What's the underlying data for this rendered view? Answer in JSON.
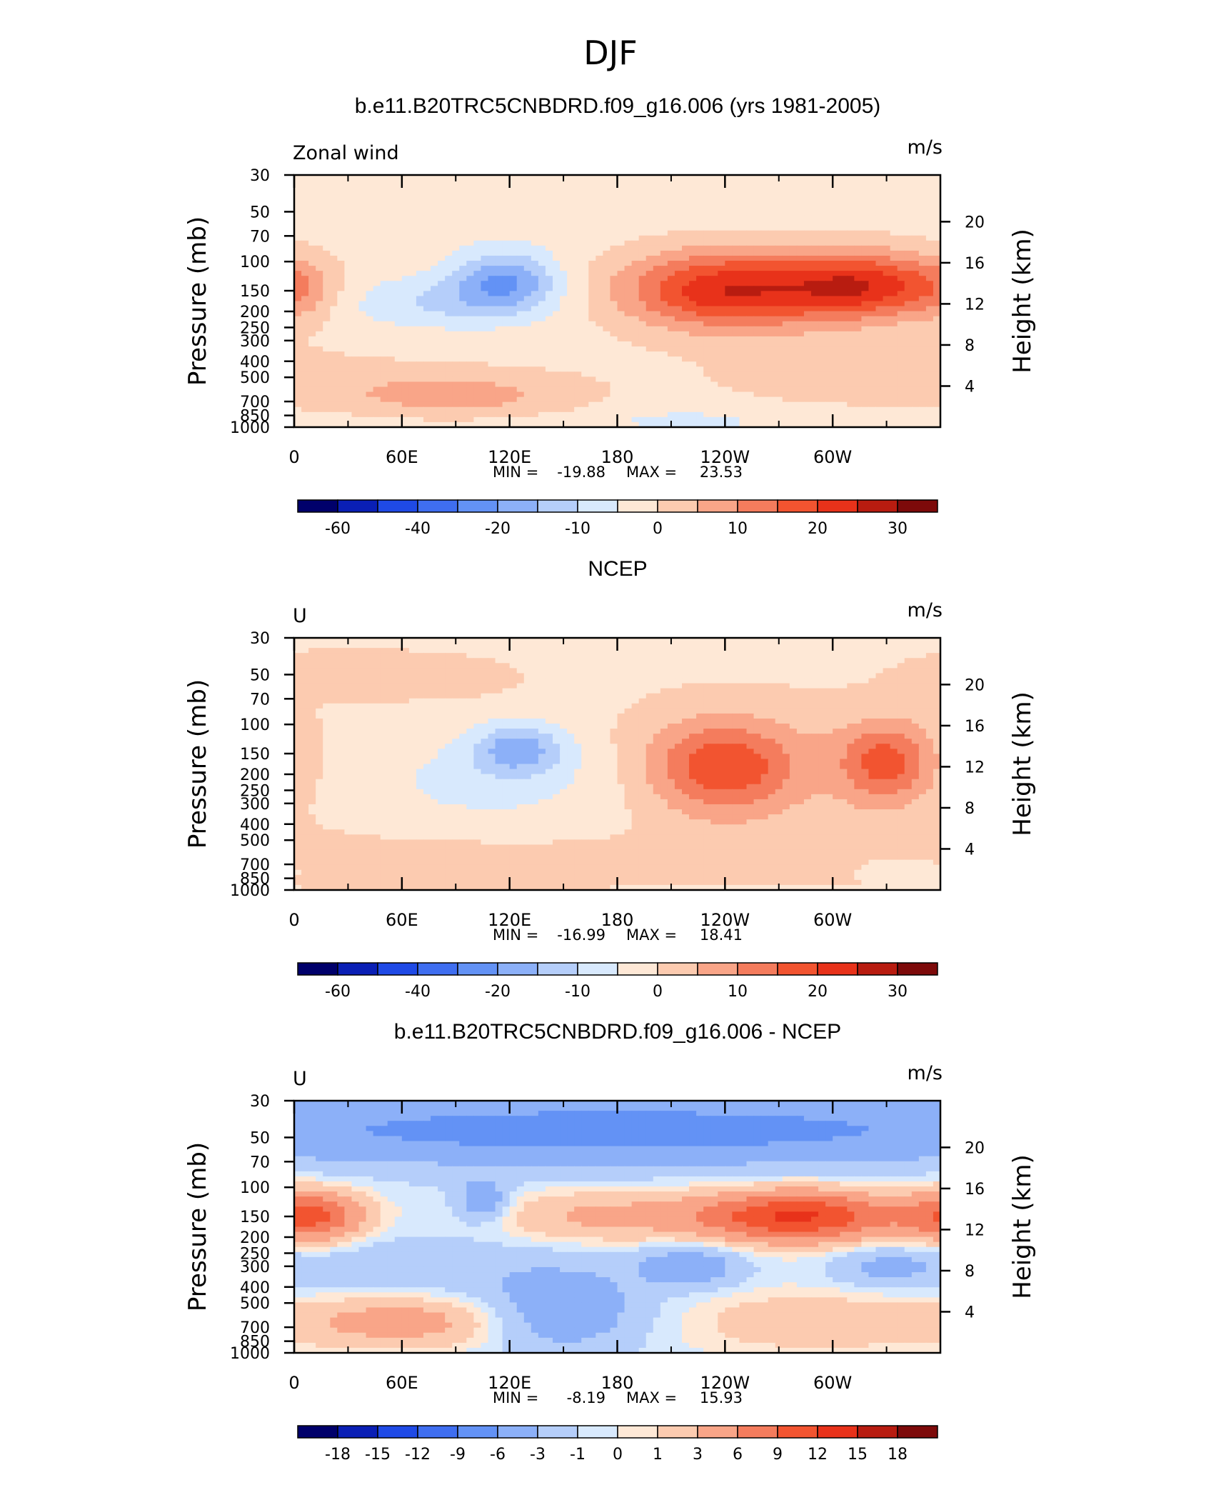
{
  "figure": {
    "title": "DJF"
  },
  "chart_data": [
    {
      "type": "heatmap",
      "title": "b.e11.B20TRC5CNBDRD.f09_g16.006 (yrs 1981-2005)",
      "left_string": "Zonal wind",
      "units": "m/s",
      "ylabel": "Pressure (mb)",
      "ylabel_right": "Height (km)",
      "x_ticks": [
        "0",
        "60E",
        "120E",
        "180",
        "120W",
        "60W"
      ],
      "y_ticks": [
        "30",
        "50",
        "70",
        "100",
        "150",
        "200",
        "250",
        "300",
        "400",
        "500",
        "700",
        "850",
        "1000"
      ],
      "y_right_ticks": [
        "20",
        "16",
        "12",
        "8",
        "4"
      ],
      "stats": {
        "min_label": "MIN =",
        "min": "-19.88",
        "max_label": "MAX =",
        "max": "23.53"
      },
      "colorbar_labels": [
        "-60",
        "-40",
        "-20",
        "-10",
        "0",
        "10",
        "20",
        "30"
      ],
      "levels": [
        -60,
        -50,
        -40,
        -30,
        -20,
        -15,
        -10,
        -5,
        0,
        5,
        10,
        15,
        20,
        25,
        30
      ],
      "features": [
        {
          "x": 118,
          "p": 130,
          "sx": 20,
          "sy": 0.28,
          "amp": -17
        },
        {
          "x": 80,
          "p": 175,
          "sx": 40,
          "sy": 0.25,
          "amp": -8
        },
        {
          "x": 240,
          "p": 150,
          "sx": 40,
          "sy": 0.38,
          "amp": 23
        },
        {
          "x": 318,
          "p": 140,
          "sx": 30,
          "sy": 0.32,
          "amp": 21
        },
        {
          "x": 280,
          "p": 140,
          "sx": 80,
          "sy": 0.5,
          "amp": 5
        },
        {
          "x": 3,
          "p": 150,
          "sx": 15,
          "sy": 0.3,
          "amp": 7
        },
        {
          "x": 90,
          "p": 650,
          "sx": 45,
          "sy": 0.2,
          "amp": 9
        },
        {
          "x": 220,
          "p": 920,
          "sx": 25,
          "sy": 0.08,
          "amp": -6
        },
        {
          "x": 40,
          "p": 500,
          "sx": 120,
          "sy": 0.35,
          "amp": 3
        },
        {
          "x": 300,
          "p": 500,
          "sx": 60,
          "sy": 0.35,
          "amp": 3
        }
      ],
      "base": -3
    },
    {
      "type": "heatmap",
      "title": "NCEP",
      "left_string": "U",
      "units": "m/s",
      "ylabel": "Pressure (mb)",
      "ylabel_right": "Height (km)",
      "x_ticks": [
        "0",
        "60E",
        "120E",
        "180",
        "120W",
        "60W"
      ],
      "y_ticks": [
        "30",
        "50",
        "70",
        "100",
        "150",
        "200",
        "250",
        "300",
        "400",
        "500",
        "700",
        "850",
        "1000"
      ],
      "y_right_ticks": [
        "20",
        "16",
        "12",
        "8",
        "4"
      ],
      "stats": {
        "min_label": "MIN =",
        "min": "-16.99",
        "max_label": "MAX =",
        "max": "18.41"
      },
      "colorbar_labels": [
        "-60",
        "-40",
        "-20",
        "-10",
        "0",
        "10",
        "20",
        "30"
      ],
      "levels": [
        -60,
        -50,
        -40,
        -30,
        -20,
        -15,
        -10,
        -5,
        0,
        5,
        10,
        15,
        20,
        25,
        30
      ],
      "features": [
        {
          "x": 125,
          "p": 140,
          "sx": 18,
          "sy": 0.25,
          "amp": -15
        },
        {
          "x": 110,
          "p": 220,
          "sx": 55,
          "sy": 0.45,
          "amp": -6
        },
        {
          "x": 238,
          "p": 180,
          "sx": 28,
          "sy": 0.45,
          "amp": 18
        },
        {
          "x": 330,
          "p": 170,
          "sx": 18,
          "sy": 0.4,
          "amp": 16
        },
        {
          "x": 280,
          "p": 180,
          "sx": 70,
          "sy": 0.6,
          "amp": 4
        },
        {
          "x": 30,
          "p": 50,
          "sx": 30,
          "sy": 0.2,
          "amp": 5
        },
        {
          "x": 85,
          "p": 52,
          "sx": 25,
          "sy": 0.18,
          "amp": 4
        },
        {
          "x": 100,
          "p": 700,
          "sx": 60,
          "sy": 0.2,
          "amp": 5
        },
        {
          "x": 340,
          "p": 750,
          "sx": 15,
          "sy": 0.1,
          "amp": -5
        },
        {
          "x": 300,
          "p": 600,
          "sx": 100,
          "sy": 0.35,
          "amp": 2
        }
      ],
      "base": -1
    },
    {
      "type": "heatmap",
      "title": "b.e11.B20TRC5CNBDRD.f09_g16.006 - NCEP",
      "left_string": "U",
      "units": "m/s",
      "ylabel": "Pressure (mb)",
      "ylabel_right": "Height (km)",
      "x_ticks": [
        "0",
        "60E",
        "120E",
        "180",
        "120W",
        "60W"
      ],
      "y_ticks": [
        "30",
        "50",
        "70",
        "100",
        "150",
        "200",
        "250",
        "300",
        "400",
        "500",
        "700",
        "850",
        "1000"
      ],
      "y_right_ticks": [
        "20",
        "16",
        "12",
        "8",
        "4"
      ],
      "stats": {
        "min_label": "MIN =",
        "min": "-8.19",
        "max_label": "MAX =",
        "max": "15.93"
      },
      "colorbar_labels": [
        "-18",
        "-15",
        "-12",
        "-9",
        "-6",
        "-3",
        "-1",
        "0",
        "1",
        "3",
        "6",
        "9",
        "12",
        "15",
        "18"
      ],
      "levels": [
        -18,
        -15,
        -12,
        -9,
        -6,
        -3,
        -1,
        0,
        1,
        3,
        6,
        9,
        12,
        15,
        18
      ],
      "features": [
        {
          "x": 180,
          "p": 45,
          "sx": 200,
          "sy": 0.35,
          "amp": -7
        },
        {
          "x": 280,
          "p": 150,
          "sx": 40,
          "sy": 0.25,
          "amp": 13
        },
        {
          "x": 10,
          "p": 150,
          "sx": 20,
          "sy": 0.25,
          "amp": 10
        },
        {
          "x": 170,
          "p": 150,
          "sx": 40,
          "sy": 0.25,
          "amp": 4
        },
        {
          "x": 105,
          "p": 120,
          "sx": 10,
          "sy": 0.2,
          "amp": -5
        },
        {
          "x": 220,
          "p": 300,
          "sx": 20,
          "sy": 0.2,
          "amp": -5
        },
        {
          "x": 150,
          "p": 550,
          "sx": 30,
          "sy": 0.4,
          "amp": -5
        },
        {
          "x": 60,
          "p": 300,
          "sx": 60,
          "sy": 0.3,
          "amp": -2
        },
        {
          "x": 60,
          "p": 650,
          "sx": 40,
          "sy": 0.25,
          "amp": 5
        },
        {
          "x": 290,
          "p": 650,
          "sx": 50,
          "sy": 0.3,
          "amp": 3
        },
        {
          "x": 330,
          "p": 300,
          "sx": 20,
          "sy": 0.2,
          "amp": -3
        }
      ],
      "base": -0.5
    }
  ],
  "colors": {
    "palette_main": [
      "#00006b",
      "#0a1fb5",
      "#1f4ae6",
      "#3f6ef0",
      "#6392f5",
      "#8cb0f8",
      "#b5cefa",
      "#d8e9fd",
      "#fee8d6",
      "#fccbb0",
      "#f9a588",
      "#f47c5d",
      "#f25430",
      "#e8321a",
      "#b81c10",
      "#7d0a0a"
    ]
  }
}
